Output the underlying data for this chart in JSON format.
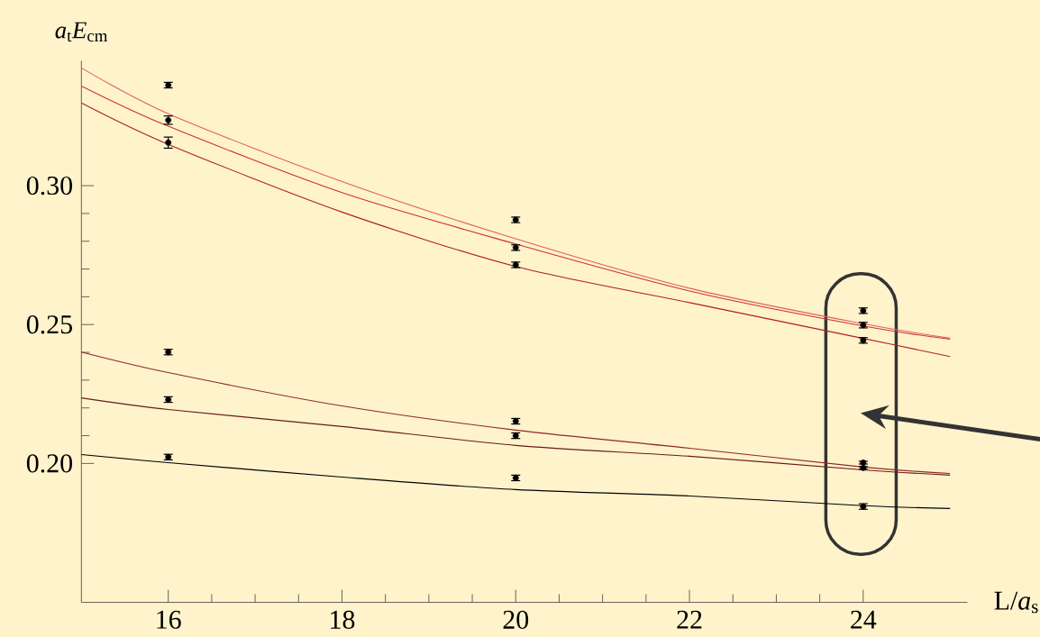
{
  "chart_data": {
    "type": "scatter",
    "xlabel": "L/*a*$_{s}$",
    "ylabel": "*a*$_{t}$*E*$_{cm}$",
    "xlim": [
      15,
      25.2
    ],
    "ylim": [
      0.15,
      0.345
    ],
    "xticks": [
      16,
      18,
      20,
      22,
      24
    ],
    "yticks": [
      {
        "value": 0.2,
        "label": "0.20"
      },
      {
        "value": 0.25,
        "label": "0.25"
      },
      {
        "value": 0.3,
        "label": "0.30"
      }
    ],
    "series": [
      {
        "type": "line",
        "color": "#e06060",
        "x": [
          15,
          16,
          18,
          20,
          22,
          24,
          25
        ],
        "marker": "none",
        "values": [
          0.3424,
          0.3259,
          0.3015,
          0.2809,
          0.2631,
          0.2503,
          0.2451
        ]
      },
      {
        "type": "line",
        "color": "#d03030",
        "x": [
          15,
          16,
          18,
          20,
          22,
          24,
          25
        ],
        "marker": "none",
        "values": [
          0.3359,
          0.3214,
          0.2975,
          0.279,
          0.2621,
          0.2495,
          0.2447
        ]
      },
      {
        "type": "line",
        "color": "#b02020",
        "x": [
          15,
          16,
          18,
          20,
          22,
          24,
          25
        ],
        "marker": "none",
        "values": [
          0.3298,
          0.3149,
          0.2905,
          0.2709,
          0.2579,
          0.245,
          0.2385
        ]
      },
      {
        "type": "line",
        "color": "#902828",
        "x": [
          15,
          16,
          18,
          20,
          22,
          24,
          25
        ],
        "marker": "none",
        "values": [
          0.2401,
          0.2327,
          0.2207,
          0.212,
          0.2055,
          0.1987,
          0.1964
        ]
      },
      {
        "type": "line",
        "color": "#6a1a1a",
        "x": [
          15,
          16,
          18,
          20,
          22,
          24,
          25
        ],
        "marker": "none",
        "values": [
          0.2236,
          0.2194,
          0.2133,
          0.2065,
          0.2026,
          0.1977,
          0.1958
        ]
      },
      {
        "type": "line",
        "color": "#000000",
        "x": [
          15,
          16,
          18,
          20,
          22,
          24,
          25
        ],
        "marker": "none",
        "values": [
          0.2032,
          0.2003,
          0.1951,
          0.1906,
          0.1883,
          0.1848,
          0.1838
        ]
      },
      {
        "color": "#000000",
        "marker": "circle",
        "x": [
          16,
          16,
          16,
          16,
          16,
          16,
          20,
          20,
          20,
          20,
          20,
          20,
          24,
          24,
          24,
          24,
          24,
          24
        ],
        "values": [
          0.3362,
          0.3236,
          0.3155,
          0.2401,
          0.223,
          0.2023,
          0.2877,
          0.2777,
          0.2715,
          0.2152,
          0.21,
          0.1948,
          0.255,
          0.2498,
          0.2443,
          0.2003,
          0.1984,
          0.1845
        ],
        "errors": [
          0.001,
          0.0015,
          0.002,
          0.001,
          0.001,
          0.001,
          0.001,
          0.001,
          0.001,
          0.001,
          0.001,
          0.001,
          0.001,
          0.001,
          0.001,
          0.0005,
          0.0005,
          0.001
        ]
      }
    ]
  }
}
